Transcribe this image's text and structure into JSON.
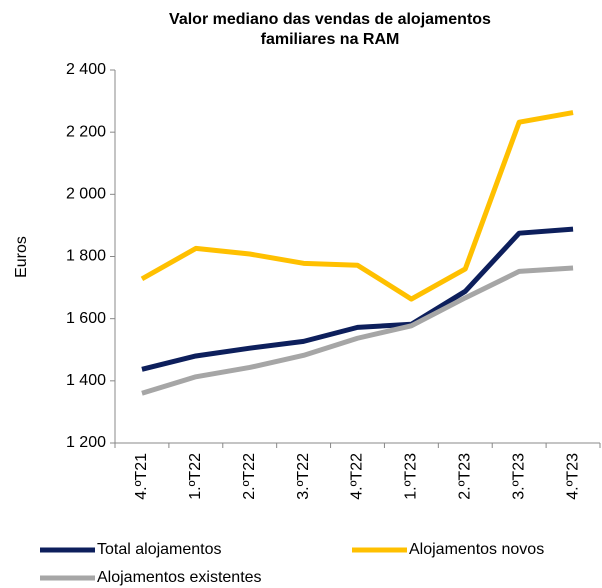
{
  "chart_data": {
    "type": "line",
    "title": "Valor mediano das vendas de alojamentos familiares na RAM",
    "title_lines": [
      "Valor mediano das vendas de alojamentos",
      "familiares na RAM"
    ],
    "ylabel": "Euros",
    "categories": [
      "4.ºT21",
      "1.ºT22",
      "2.ºT22",
      "3.ºT22",
      "4.ºT22",
      "1.ºT23",
      "2.ºT23",
      "3.ºT23",
      "4.ºT23"
    ],
    "series": [
      {
        "name": "Total alojamentos",
        "color": "#0d1f5c",
        "values": [
          1437,
          1480,
          1505,
          1527,
          1572,
          1582,
          1688,
          1875,
          1888
        ]
      },
      {
        "name": "Alojamentos novos",
        "color": "#ffc000",
        "values": [
          1728,
          1826,
          1808,
          1778,
          1772,
          1663,
          1760,
          2232,
          2263
        ]
      },
      {
        "name": "Alojamentos existentes",
        "color": "#a6a6a6",
        "values": [
          1360,
          1413,
          1443,
          1482,
          1537,
          1577,
          1667,
          1752,
          1763
        ]
      }
    ],
    "ylim": [
      1200,
      2400
    ],
    "yticks": [
      {
        "value": 1200,
        "label": "1 200"
      },
      {
        "value": 1400,
        "label": "1 400"
      },
      {
        "value": 1600,
        "label": "1 600"
      },
      {
        "value": 1800,
        "label": "1 800"
      },
      {
        "value": 2000,
        "label": "2 000"
      },
      {
        "value": 2200,
        "label": "2 200"
      },
      {
        "value": 2400,
        "label": "2 400"
      }
    ],
    "grid": false
  }
}
